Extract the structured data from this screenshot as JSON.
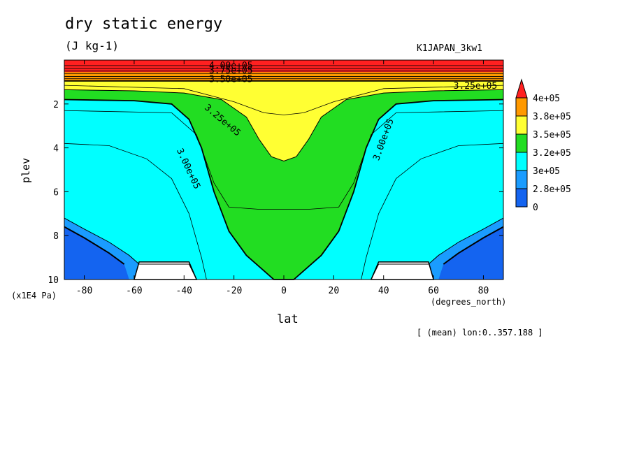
{
  "chart_data": {
    "type": "heatmap",
    "title": "dry static energy",
    "units": "(J kg-1)",
    "run_name": "K1JAPAN_3kw1",
    "xlabel": "lat",
    "xunits": "(degrees_north)",
    "ylabel": "plev",
    "yunits": "(x1E4 Pa)",
    "footnote": "[ (mean) lon:0..357.188 ]",
    "xlim": [
      -88,
      88
    ],
    "ylim": [
      10,
      0
    ],
    "x_ticks": [
      "-80",
      "-60",
      "-40",
      "-20",
      "0",
      "20",
      "40",
      "60",
      "80"
    ],
    "x_tick_values": [
      -80,
      -60,
      -40,
      -20,
      0,
      20,
      40,
      60,
      80
    ],
    "y_ticks": [
      "2",
      "4",
      "6",
      "8",
      "10"
    ],
    "y_tick_values": [
      2,
      4,
      6,
      8,
      10
    ],
    "legend": {
      "position": "right",
      "labels": [
        "4e+05",
        "3.8e+05",
        "3.5e+05",
        "3.2e+05",
        "3e+05",
        "2.8e+05",
        "0"
      ],
      "colors": [
        "#ff2020",
        "#ff9900",
        "#ffff33",
        "#22dd22",
        "#00ffff",
        "#1a9cff",
        "#1464f0"
      ]
    },
    "contour_labels": [
      "4.00e+05",
      "3.75e+05",
      "3.50e+05",
      "3.25e+05",
      "3.25e+05",
      "3.00e+05",
      "3.00e+05"
    ],
    "contour_levels": [
      275000,
      287500,
      300000,
      312500,
      325000,
      337500,
      350000,
      362500,
      375000,
      387500,
      400000
    ],
    "bands": [
      {
        "level": 380000.0,
        "color": "#ff9900",
        "points": [
          [
            -88,
            0.55
          ],
          [
            88,
            0.55
          ]
        ]
      },
      {
        "level": 350000.0,
        "color": "#ffff33",
        "points": [
          [
            -88,
            0.95
          ],
          [
            88,
            0.95
          ]
        ]
      },
      {
        "level": 325000.0,
        "color": "#22dd22",
        "points": [
          [
            -88,
            1.35
          ],
          [
            -60,
            1.4
          ],
          [
            -40,
            1.5
          ],
          [
            -25,
            1.8
          ],
          [
            -15,
            2.6
          ],
          [
            -10,
            3.6
          ],
          [
            -5,
            4.4
          ],
          [
            0,
            4.6
          ],
          [
            5,
            4.4
          ],
          [
            10,
            3.6
          ],
          [
            15,
            2.6
          ],
          [
            25,
            1.8
          ],
          [
            40,
            1.5
          ],
          [
            60,
            1.4
          ],
          [
            88,
            1.35
          ]
        ]
      },
      {
        "level": 300000.0,
        "color": "#00ffff",
        "points": [
          [
            -88,
            1.8
          ],
          [
            -60,
            1.85
          ],
          [
            -45,
            2.0
          ],
          [
            -38,
            2.7
          ],
          [
            -33,
            4.0
          ],
          [
            -28,
            6.0
          ],
          [
            -22,
            7.8
          ],
          [
            -15,
            8.9
          ],
          [
            -8,
            9.6
          ],
          [
            -4,
            10.0
          ],
          [
            4,
            10.0
          ],
          [
            8,
            9.6
          ],
          [
            15,
            8.9
          ],
          [
            22,
            7.8
          ],
          [
            28,
            6.0
          ],
          [
            33,
            4.0
          ],
          [
            38,
            2.7
          ],
          [
            45,
            2.0
          ],
          [
            60,
            1.85
          ],
          [
            88,
            1.8
          ]
        ]
      },
      {
        "level": 275000.0,
        "color": "#1a9cff",
        "points": [
          [
            -88,
            7.2
          ],
          [
            -80,
            7.7
          ],
          [
            -70,
            8.3
          ],
          [
            -62,
            8.9
          ],
          [
            -58,
            9.3
          ],
          [
            -52,
            9.3
          ],
          [
            -45,
            9.3
          ],
          [
            -38,
            9.3
          ],
          [
            -35,
            10.0
          ],
          [
            35,
            10.0
          ],
          [
            38,
            9.3
          ],
          [
            45,
            9.3
          ],
          [
            52,
            9.3
          ],
          [
            58,
            9.3
          ],
          [
            62,
            8.9
          ],
          [
            70,
            8.3
          ],
          [
            80,
            7.7
          ],
          [
            88,
            7.2
          ]
        ]
      }
    ],
    "topography": [
      [
        [
          -58,
          9.2
        ],
        [
          -38,
          9.2
        ],
        [
          -35,
          10.0
        ],
        [
          -60,
          10.0
        ]
      ],
      [
        [
          38,
          9.2
        ],
        [
          58,
          9.2
        ],
        [
          60,
          10.0
        ],
        [
          35,
          10.0
        ]
      ]
    ]
  }
}
